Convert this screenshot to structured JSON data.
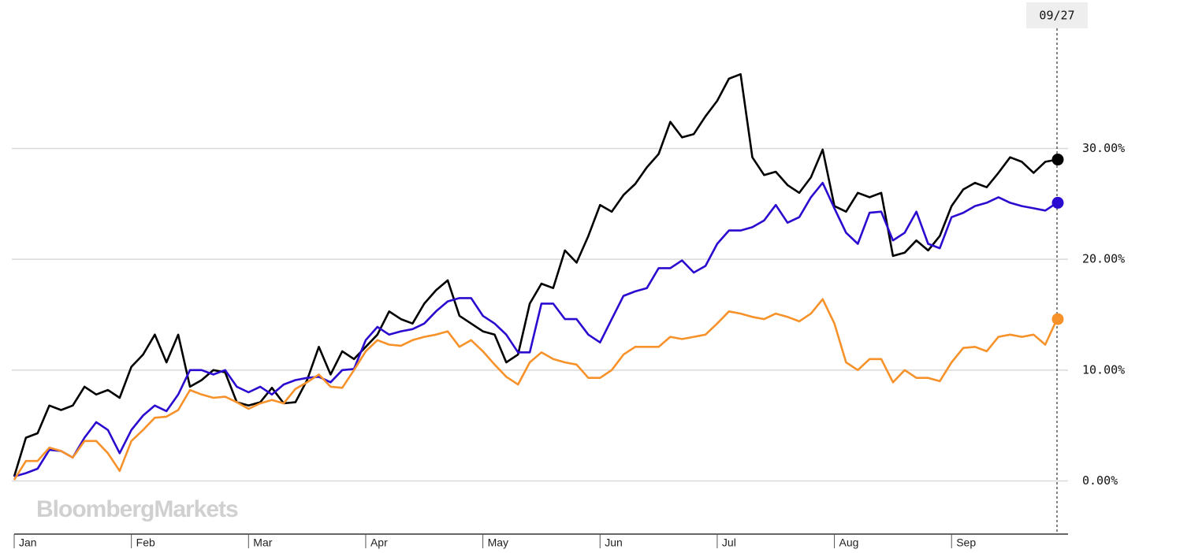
{
  "chart_data": {
    "type": "line",
    "watermark": "BloombergMarkets",
    "crosshair_label": "09/27",
    "categories": [
      "Jan",
      null,
      null,
      null,
      null,
      null,
      null,
      null,
      null,
      null,
      "Feb",
      null,
      null,
      null,
      null,
      null,
      null,
      null,
      null,
      null,
      "Mar",
      null,
      null,
      null,
      null,
      null,
      null,
      null,
      null,
      null,
      "Apr",
      null,
      null,
      null,
      null,
      null,
      null,
      null,
      null,
      null,
      "May",
      null,
      null,
      null,
      null,
      null,
      null,
      null,
      null,
      null,
      "Jun",
      null,
      null,
      null,
      null,
      null,
      null,
      null,
      null,
      null,
      "Jul",
      null,
      null,
      null,
      null,
      null,
      null,
      null,
      null,
      null,
      "Aug",
      null,
      null,
      null,
      null,
      null,
      null,
      null,
      null,
      null,
      "Sep",
      null,
      null,
      null,
      null,
      null,
      null,
      null,
      null,
      null
    ],
    "series": [
      {
        "color": "#000000",
        "values": [
          0.4,
          3.9,
          4.3,
          6.8,
          6.4,
          6.8,
          8.5,
          7.8,
          8.2,
          7.5,
          10.3,
          11.4,
          13.2,
          10.7,
          13.2,
          8.5,
          9.1,
          10.0,
          9.8,
          7.1,
          6.8,
          7.1,
          8.4,
          7.0,
          7.1,
          9.1,
          12.1,
          9.6,
          11.7,
          11.0,
          12.1,
          13.2,
          15.3,
          14.6,
          14.2,
          16.0,
          17.2,
          18.1,
          14.9,
          14.2,
          13.5,
          13.2,
          10.7,
          11.4,
          16.0,
          17.8,
          17.4,
          20.8,
          19.7,
          22.1,
          24.9,
          24.3,
          25.8,
          26.8,
          28.3,
          29.5,
          32.4,
          31.0,
          31.3,
          32.9,
          34.3,
          36.3,
          36.7,
          29.2,
          27.6,
          27.9,
          26.7,
          26.0,
          27.4,
          29.9,
          24.8,
          24.3,
          26.0,
          25.6,
          26.0,
          20.3,
          20.6,
          21.7,
          20.8,
          22.1,
          24.8,
          26.3,
          26.9,
          26.5,
          27.8,
          29.2,
          28.8,
          27.8,
          28.8,
          29.0
        ]
      },
      {
        "color": "#2a0bd0",
        "values": [
          0.4,
          0.7,
          1.1,
          2.8,
          2.7,
          2.1,
          3.9,
          5.3,
          4.6,
          2.5,
          4.6,
          5.9,
          6.8,
          6.3,
          7.8,
          10.0,
          10.0,
          9.6,
          10.0,
          8.5,
          8.0,
          8.5,
          7.8,
          8.7,
          9.1,
          9.3,
          9.4,
          8.9,
          10.0,
          10.1,
          12.7,
          13.9,
          13.2,
          13.5,
          13.7,
          14.2,
          15.3,
          16.2,
          16.5,
          16.5,
          14.9,
          14.2,
          13.2,
          11.6,
          11.6,
          16.0,
          16.0,
          14.6,
          14.6,
          13.2,
          12.5,
          14.6,
          16.7,
          17.1,
          17.4,
          19.2,
          19.2,
          19.9,
          18.8,
          19.4,
          21.4,
          22.6,
          22.6,
          22.9,
          23.5,
          24.9,
          23.3,
          23.8,
          25.6,
          26.9,
          24.6,
          22.4,
          21.4,
          24.2,
          24.3,
          21.7,
          22.4,
          24.3,
          21.4,
          21.0,
          23.8,
          24.2,
          24.8,
          25.1,
          25.6,
          25.1,
          24.8,
          24.6,
          24.4,
          25.1
        ]
      },
      {
        "color": "#f7922a",
        "values": [
          0.1,
          1.8,
          1.8,
          3.0,
          2.7,
          2.1,
          3.6,
          3.6,
          2.5,
          0.9,
          3.6,
          4.6,
          5.7,
          5.8,
          6.4,
          8.2,
          7.8,
          7.5,
          7.6,
          7.1,
          6.5,
          7.0,
          7.3,
          7.0,
          8.3,
          8.9,
          9.6,
          8.5,
          8.4,
          10.0,
          11.7,
          12.7,
          12.3,
          12.2,
          12.7,
          13.0,
          13.2,
          13.5,
          12.1,
          12.7,
          11.7,
          10.5,
          9.4,
          8.7,
          10.7,
          11.6,
          11.0,
          10.7,
          10.5,
          9.3,
          9.3,
          10.0,
          11.4,
          12.1,
          12.1,
          12.1,
          13.0,
          12.8,
          13.0,
          13.2,
          14.2,
          15.3,
          15.1,
          14.8,
          14.6,
          15.1,
          14.8,
          14.4,
          15.1,
          16.4,
          14.2,
          10.7,
          10.0,
          11.0,
          11.0,
          8.9,
          10.0,
          9.3,
          9.3,
          9.0,
          10.7,
          12.0,
          12.1,
          11.7,
          13.0,
          13.2,
          13.0,
          13.2,
          12.3,
          14.6
        ]
      }
    ],
    "ylim": [
      -4.8,
      43.4
    ],
    "yticks": [
      {
        "value": 0,
        "label": "0.00%"
      },
      {
        "value": 10,
        "label": "10.00%"
      },
      {
        "value": 20,
        "label": "20.00%"
      },
      {
        "value": 30,
        "label": "30.00%"
      }
    ],
    "grid": true
  }
}
